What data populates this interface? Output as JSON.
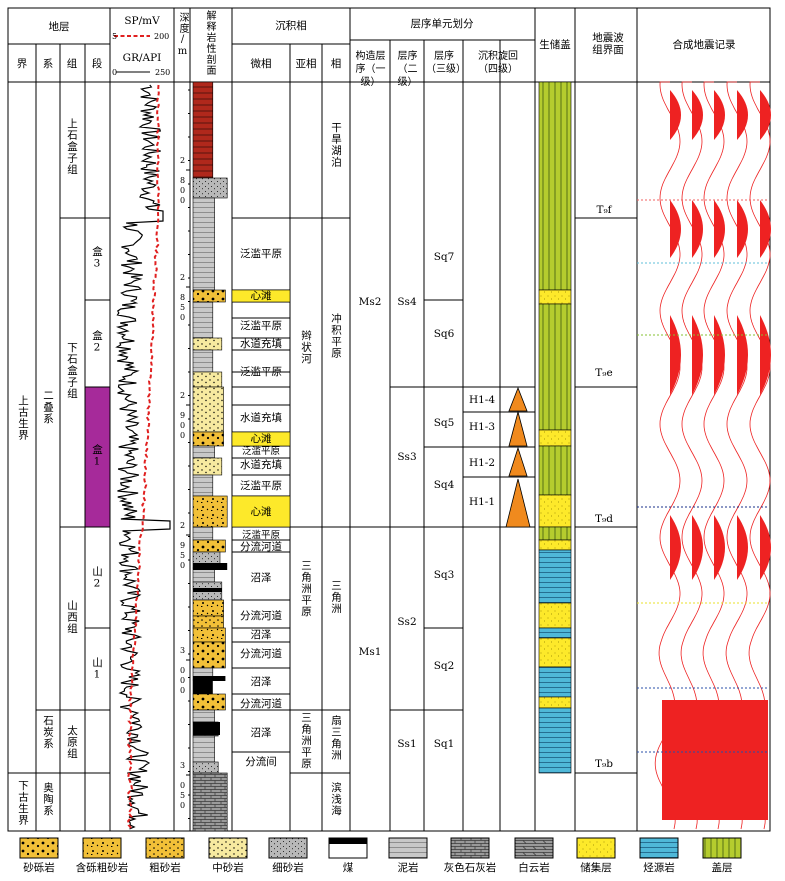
{
  "headers": {
    "strata": "地层",
    "sp_curve": "SP/mV",
    "sp_min": "5",
    "sp_max": "200",
    "gr_curve": "GR/API",
    "gr_min": "0",
    "gr_max": "250",
    "depth": "深度/m",
    "lithology": "解释岩性剖面",
    "facies": "沉积相",
    "sequence": "层序单元划分",
    "reservoir": "生储盖",
    "seismic_boundary": "地震波组界面",
    "synthetic": "合成地震记录",
    "jie": "界",
    "xi": "系",
    "zu": "组",
    "duan": "段",
    "microfacies": "微相",
    "subfacies": "亚相",
    "facies_col": "相",
    "tectonic_seq": "构造层序（一级）",
    "seq2": "层序（二级）",
    "seq3": "层序（三级）",
    "cycle4": "沉积旋回（四级）"
  },
  "strata": {
    "jie": [
      "上古生界",
      "下古生界"
    ],
    "xi": [
      "二叠系",
      "石炭系",
      "奥陶系"
    ],
    "zu": [
      "上石盒子组",
      "下石盒子组",
      "山西组",
      "太原组"
    ],
    "duan": [
      "盒3",
      "盒2",
      "盒1",
      "山2",
      "山1"
    ]
  },
  "depth_ticks": [
    "2 800",
    "2 850",
    "2 900",
    "2 950",
    "3 000",
    "3 050"
  ],
  "microfacies": [
    "泛滥平原",
    "心滩",
    "泛滥平原",
    "水道充填",
    "泛滥平原",
    "水道充填",
    "心滩",
    "泛滥平原",
    "水道充填",
    "泛滥平原",
    "心滩",
    "泛滥平原",
    "分流河道",
    "沼泽",
    "分流河道",
    "沼泽",
    "分流河道",
    "沼泽",
    "分流河道",
    "沼泽",
    "分流间"
  ],
  "subfacies": [
    "辫状河",
    "三角洲平原",
    "三角洲平原"
  ],
  "facies": [
    "干旱湖泊",
    "冲积平原",
    "三角洲",
    "扇三角洲",
    "滨浅海"
  ],
  "tectonic_seq": [
    "Ms2",
    "Ms1"
  ],
  "seq2": [
    "Ss4",
    "Ss3",
    "Ss2",
    "Ss1"
  ],
  "seq3": [
    "Sq7",
    "Sq6",
    "Sq5",
    "Sq4",
    "Sq3",
    "Sq2",
    "Sq1"
  ],
  "cycle4": [
    "H1-4",
    "H1-3",
    "H1-2",
    "H1-1"
  ],
  "seismic": [
    "T₉f",
    "T₉e",
    "T₉d",
    "T₉b"
  ],
  "legend": [
    "砂砾岩",
    "含砾粗砂岩",
    "粗砂岩",
    "中砂岩",
    "细砂岩",
    "煤",
    "泥岩",
    "灰色石灰岩",
    "白云岩",
    "储集层",
    "烃源岩",
    "盖层"
  ],
  "colors": {
    "sp_curve": "#e02020",
    "he1": "#a62a9a",
    "yellow": "#fde92a",
    "cap": "#b5cc2e",
    "source": "#4fb8d8",
    "synthetic": "#ee2222",
    "triangle": "#f08a1e"
  }
}
